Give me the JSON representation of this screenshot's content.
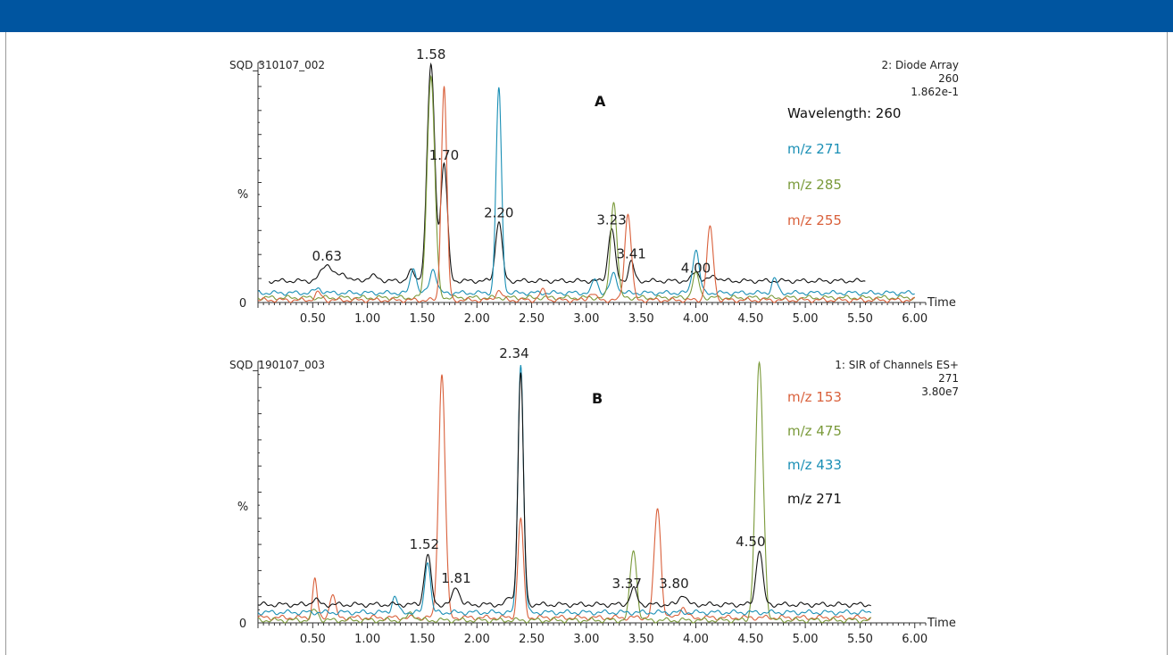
{
  "chart_data": [
    {
      "type": "line",
      "panel_label": "A",
      "file_id": "SQD_310107_002",
      "header_lines": [
        "2: Diode Array",
        "260",
        "1.862e-1"
      ],
      "ylabel": "%",
      "y_zero_label": "0",
      "xlabel": "Time",
      "xlim": [
        0,
        6.1
      ],
      "ylim": [
        0,
        100
      ],
      "xticks": [
        "0.50",
        "1.00",
        "1.50",
        "2.00",
        "2.50",
        "3.00",
        "3.50",
        "4.00",
        "4.50",
        "5.00",
        "5.50",
        "6.00"
      ],
      "peak_labels": [
        {
          "text": "0.63",
          "x": 0.63,
          "y": 16
        },
        {
          "text": "1.58",
          "x": 1.58,
          "y": 100
        },
        {
          "text": "1.70",
          "x": 1.7,
          "y": 58
        },
        {
          "text": "2.20",
          "x": 2.2,
          "y": 34
        },
        {
          "text": "3.23",
          "x": 3.23,
          "y": 31
        },
        {
          "text": "3.41",
          "x": 3.41,
          "y": 17
        },
        {
          "text": "4.00",
          "x": 4.0,
          "y": 11
        }
      ],
      "series": [
        {
          "name": "Wavelength: 260",
          "color": "#111111",
          "baseline": 9,
          "baseline_range": [
            0.1,
            5.55
          ],
          "peaks": [
            [
              0.63,
              7,
              0.05
            ],
            [
              0.78,
              3,
              0.04
            ],
            [
              1.05,
              2,
              0.05
            ],
            [
              1.4,
              4,
              0.03
            ],
            [
              1.58,
              90,
              0.035
            ],
            [
              1.7,
              49,
              0.03
            ],
            [
              2.2,
              25,
              0.03
            ],
            [
              3.23,
              22,
              0.03
            ],
            [
              3.41,
              8,
              0.025
            ],
            [
              4.0,
              4,
              0.03
            ],
            [
              4.17,
              2,
              0.04
            ]
          ]
        },
        {
          "name": "m/z 271",
          "color": "#1a8fb5",
          "baseline": 4,
          "baseline_range": [
            0.0,
            6.0
          ],
          "peaks": [
            [
              0.55,
              2,
              0.03
            ],
            [
              1.42,
              11,
              0.025
            ],
            [
              1.6,
              10,
              0.03
            ],
            [
              2.2,
              85,
              0.025
            ],
            [
              3.08,
              6,
              0.025
            ],
            [
              3.25,
              8,
              0.03
            ],
            [
              4.0,
              18,
              0.03
            ],
            [
              4.72,
              6,
              0.025
            ]
          ]
        },
        {
          "name": "m/z 285",
          "color": "#7a9a3a",
          "baseline": 2,
          "baseline_range": [
            0.0,
            6.0
          ],
          "peaks": [
            [
              1.58,
              92,
              0.035
            ],
            [
              3.25,
              40,
              0.03
            ],
            [
              4.0,
              10,
              0.03
            ]
          ]
        },
        {
          "name": "m/z 255",
          "color": "#d9603b",
          "baseline": 1,
          "baseline_range": [
            0.0,
            6.0
          ],
          "peaks": [
            [
              0.55,
              3,
              0.03
            ],
            [
              1.7,
              89,
              0.025
            ],
            [
              2.2,
              4,
              0.03
            ],
            [
              2.6,
              4,
              0.03
            ],
            [
              3.05,
              3,
              0.03
            ],
            [
              3.38,
              36,
              0.03
            ],
            [
              4.13,
              30,
              0.03
            ]
          ]
        }
      ]
    },
    {
      "type": "line",
      "panel_label": "B",
      "file_id": "SQD_190107_003",
      "header_lines": [
        "1: SIR of Channels ES+",
        "271",
        "3.80e7"
      ],
      "ylabel": "%",
      "y_zero_label": "0",
      "xlabel": "Time",
      "xlim": [
        0,
        6.1
      ],
      "ylim": [
        0,
        100
      ],
      "xticks": [
        "0.50",
        "1.00",
        "1.50",
        "2.00",
        "2.50",
        "3.00",
        "3.50",
        "4.00",
        "4.50",
        "5.00",
        "5.50",
        "6.00"
      ],
      "peak_labels": [
        {
          "text": "1.52",
          "x": 1.52,
          "y": 27
        },
        {
          "text": "1.81",
          "x": 1.81,
          "y": 14
        },
        {
          "text": "2.34",
          "x": 2.34,
          "y": 100
        },
        {
          "text": "3.37",
          "x": 3.37,
          "y": 12
        },
        {
          "text": "3.80",
          "x": 3.8,
          "y": 12
        },
        {
          "text": "4.50",
          "x": 4.5,
          "y": 28
        }
      ],
      "series": [
        {
          "name": "m/z 153",
          "color": "#d9603b",
          "baseline": 2,
          "baseline_range": [
            0.0,
            5.6
          ],
          "peaks": [
            [
              0.52,
              15,
              0.02
            ],
            [
              0.68,
              9,
              0.025
            ],
            [
              1.68,
              93,
              0.03
            ],
            [
              2.4,
              38,
              0.025
            ],
            [
              3.65,
              42,
              0.03
            ],
            [
              3.88,
              4,
              0.03
            ]
          ]
        },
        {
          "name": "m/z 475",
          "color": "#7a9a3a",
          "baseline": 1,
          "baseline_range": [
            0.0,
            5.6
          ],
          "peaks": [
            [
              0.52,
              4,
              0.03
            ],
            [
              1.4,
              3,
              0.03
            ],
            [
              3.43,
              27,
              0.03
            ],
            [
              4.58,
              98,
              0.035
            ]
          ]
        },
        {
          "name": "m/z 433",
          "color": "#1a8fb5",
          "baseline": 4,
          "baseline_range": [
            0.0,
            5.6
          ],
          "peaks": [
            [
              1.25,
              6,
              0.025
            ],
            [
              1.55,
              20,
              0.025
            ],
            [
              2.4,
              95,
              0.025
            ]
          ]
        },
        {
          "name": "m/z 271",
          "color": "#111111",
          "baseline": 7,
          "baseline_range": [
            0.0,
            5.6
          ],
          "peaks": [
            [
              0.52,
              2,
              0.03
            ],
            [
              1.55,
              19,
              0.03
            ],
            [
              1.81,
              7,
              0.03
            ],
            [
              2.3,
              3,
              0.025
            ],
            [
              2.4,
              88,
              0.025
            ],
            [
              3.43,
              6,
              0.03
            ],
            [
              3.88,
              4,
              0.03
            ],
            [
              4.58,
              21,
              0.03
            ]
          ]
        }
      ]
    }
  ]
}
